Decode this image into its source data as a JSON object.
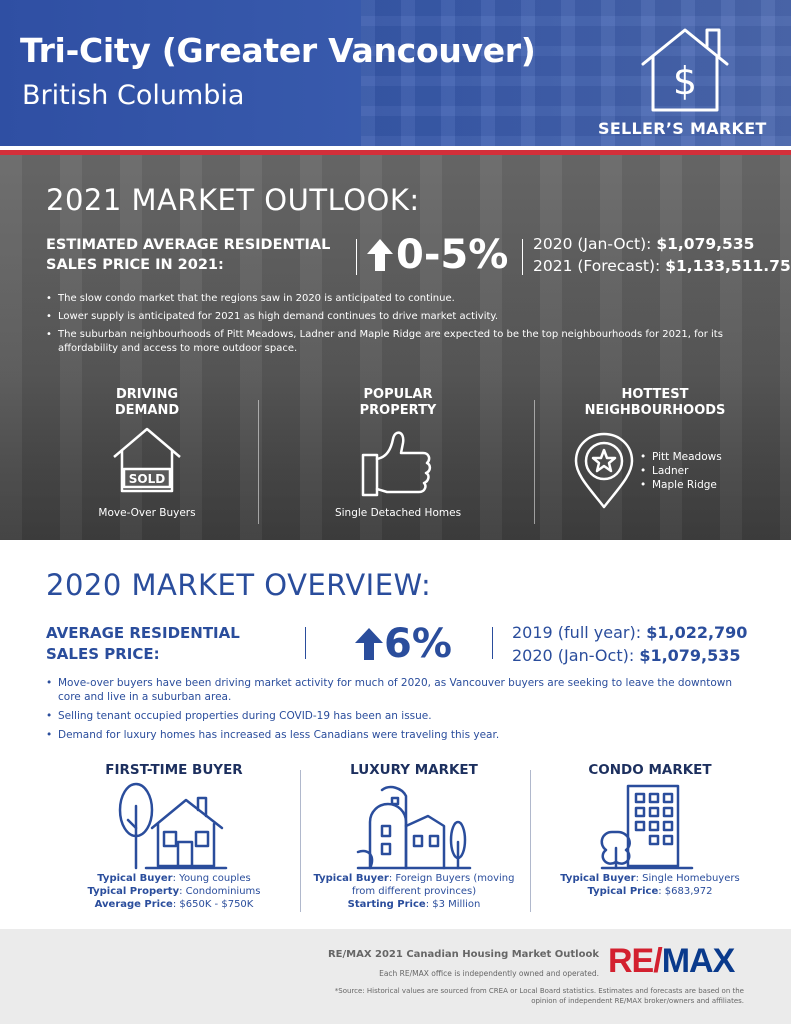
{
  "header": {
    "title": "Tri-City (Greater Vancouver)",
    "subtitle": "British Columbia",
    "badge": "SELLER’S MARKET",
    "icon": "house-dollar-icon"
  },
  "outlook": {
    "heading": "2021 MARKET OUTLOOK:",
    "label_line1": "ESTIMATED AVERAGE RESIDENTIAL",
    "label_line2": "SALES PRICE IN 2021:",
    "change": "0-5%",
    "price1_label": "2020 (Jan-Oct): ",
    "price1_value": "$1,079,535",
    "price2_label": "2021 (Forecast): ",
    "price2_value": "$1,133,511.75",
    "bullets": [
      "The slow condo market that the regions saw in 2020 is anticipated to continue.",
      "Lower supply is anticipated for 2021 as high demand continues to drive market activity.",
      "The suburban neighbourhoods of Pitt Meadows, Ladner and Maple Ridge are expected to be the top neighbourhoods for 2021, for its affordability and access to more outdoor space."
    ],
    "columns": {
      "demand": {
        "head1": "DRIVING",
        "head2": "DEMAND",
        "caption": "Move-Over Buyers",
        "sold": "SOLD"
      },
      "property": {
        "head1": "POPULAR",
        "head2": "PROPERTY",
        "caption": "Single Detached Homes"
      },
      "hoods": {
        "head1": "HOTTEST",
        "head2": "NEIGHBOURHOODS",
        "items": [
          "Pitt Meadows",
          "Ladner",
          "Maple Ridge"
        ]
      }
    }
  },
  "overview": {
    "heading": "2020 MARKET OVERVIEW:",
    "label_line1": "AVERAGE RESIDENTIAL",
    "label_line2": "SALES PRICE:",
    "change": "6%",
    "price1_label": "2019 (full year): ",
    "price1_value": "$1,022,790",
    "price2_label": "2020 (Jan-Oct): ",
    "price2_value": "$1,079,535",
    "bullets": [
      "Move-over buyers have been driving market activity for much of 2020, as Vancouver buyers are seeking to leave the downtown core and live in a suburban area.",
      "Selling tenant occupied properties during COVID-19 has been an issue.",
      "Demand for luxury homes has increased as less Canadians were traveling this year."
    ],
    "columns": {
      "first_time": {
        "head": "FIRST-TIME BUYER",
        "l1_label": "Typical Buyer",
        "l1_value": ": Young couples",
        "l2_label": "Typical Property",
        "l2_value": ": Condominiums",
        "l3_label": "Average Price",
        "l3_value": ": $650K - $750K"
      },
      "luxury": {
        "head": "LUXURY MARKET",
        "l1_label": "Typical Buyer",
        "l1_value": ": Foreign Buyers (moving",
        "l2_value": "from different provinces)",
        "l3_label": "Starting Price",
        "l3_value": ": $3 Million"
      },
      "condo": {
        "head": "CONDO MARKET",
        "l1_label": "Typical Buyer",
        "l1_value": ": Single Homebuyers",
        "l2_label": "Typical Price",
        "l2_value": ": $683,972"
      }
    }
  },
  "footer": {
    "title": "RE/MAX 2021 Canadian Housing Market Outlook",
    "note": "Each RE/MAX office is independently owned and operated.",
    "source": "*Source: Historical values are sourced from CREA or Local Board statistics. Estimates and forecasts are based on the opinion of independent RE/MAX broker/owners and affiliates.",
    "logo_re": "RE",
    "logo_slash": "/",
    "logo_max": "MAX"
  },
  "colors": {
    "blue": "#2a4d9c",
    "red": "#d32f3a",
    "dark_navy": "#1c2f5e"
  }
}
